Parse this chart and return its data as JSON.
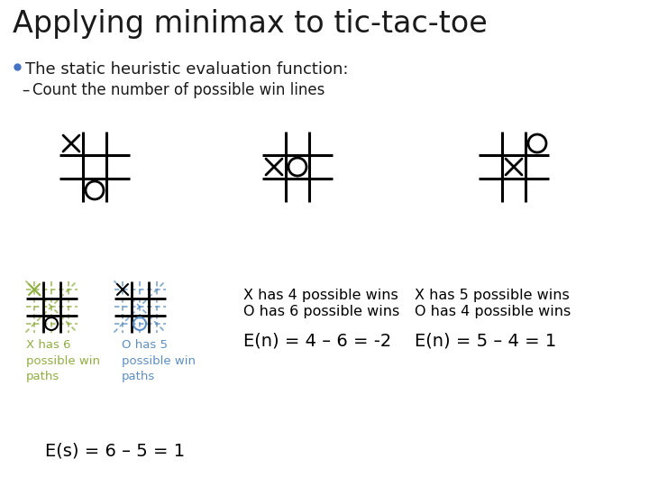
{
  "title": "Applying minimax to tic-tac-toe",
  "bullet": "The static heuristic evaluation function:",
  "sub_bullet": "Count the number of possible win lines",
  "bg_color": "#ffffff",
  "title_color": "#1a1a1a",
  "bullet_color": "#1a1a1a",
  "bullet_dot_color": "#4472c4",
  "grid_color": "#000000",
  "green_color": "#8faf3e",
  "blue_color": "#5b8fc4",
  "formula_left": "E(s) = 6 – 5 = 1",
  "text_mid_1": "X has 4 possible wins",
  "text_mid_2": "O has 6 possible wins",
  "formula_mid": "E(n) = 4 – 6 = -2",
  "text_right_1": "X has 5 possible wins",
  "text_right_2": "O has 4 possible wins",
  "formula_right": "E(n) = 5 – 4 = 1"
}
